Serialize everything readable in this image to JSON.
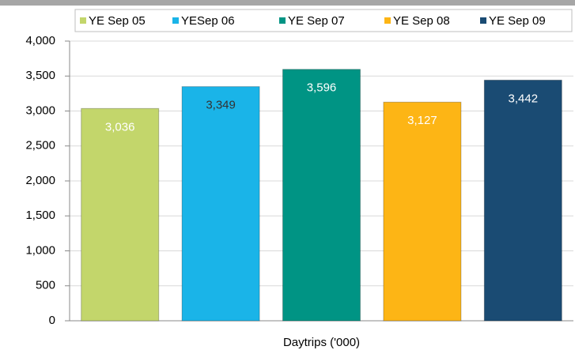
{
  "chart_data": {
    "type": "bar",
    "categories": [
      "Daytrips ('000)"
    ],
    "series": [
      {
        "name": "YE Sep 05",
        "color": "#c3d66b",
        "label_color": "#ffffff",
        "values": [
          3036
        ],
        "value_labels": [
          "3,036"
        ]
      },
      {
        "name": "YESep 06",
        "color": "#1ab4e8",
        "label_color": "#333333",
        "values": [
          3349
        ],
        "value_labels": [
          "3,349"
        ]
      },
      {
        "name": "YE Sep 07",
        "color": "#009484",
        "label_color": "#ffffff",
        "values": [
          3596
        ],
        "value_labels": [
          "3,596"
        ]
      },
      {
        "name": "YE Sep 08",
        "color": "#fdb515",
        "label_color": "#ffffff",
        "values": [
          3127
        ],
        "value_labels": [
          "3,127"
        ]
      },
      {
        "name": "YE Sep 09",
        "color": "#1a4b73",
        "label_color": "#ffffff",
        "values": [
          3442
        ],
        "value_labels": [
          "3,442"
        ]
      }
    ],
    "ylim": [
      0,
      4000
    ],
    "yticks": [
      0,
      500,
      {
        "value": 1000,
        "label": "1,000"
      },
      {
        "value": 1500,
        "label": "1,500"
      },
      {
        "value": 2000,
        "label": "2,000"
      },
      {
        "value": 2500,
        "label": "2,500"
      },
      {
        "value": 3000,
        "label": "3,000"
      },
      {
        "value": 3500,
        "label": "3,500"
      },
      {
        "value": 4000,
        "label": "4,000"
      }
    ],
    "grid": true,
    "legend": "top"
  }
}
